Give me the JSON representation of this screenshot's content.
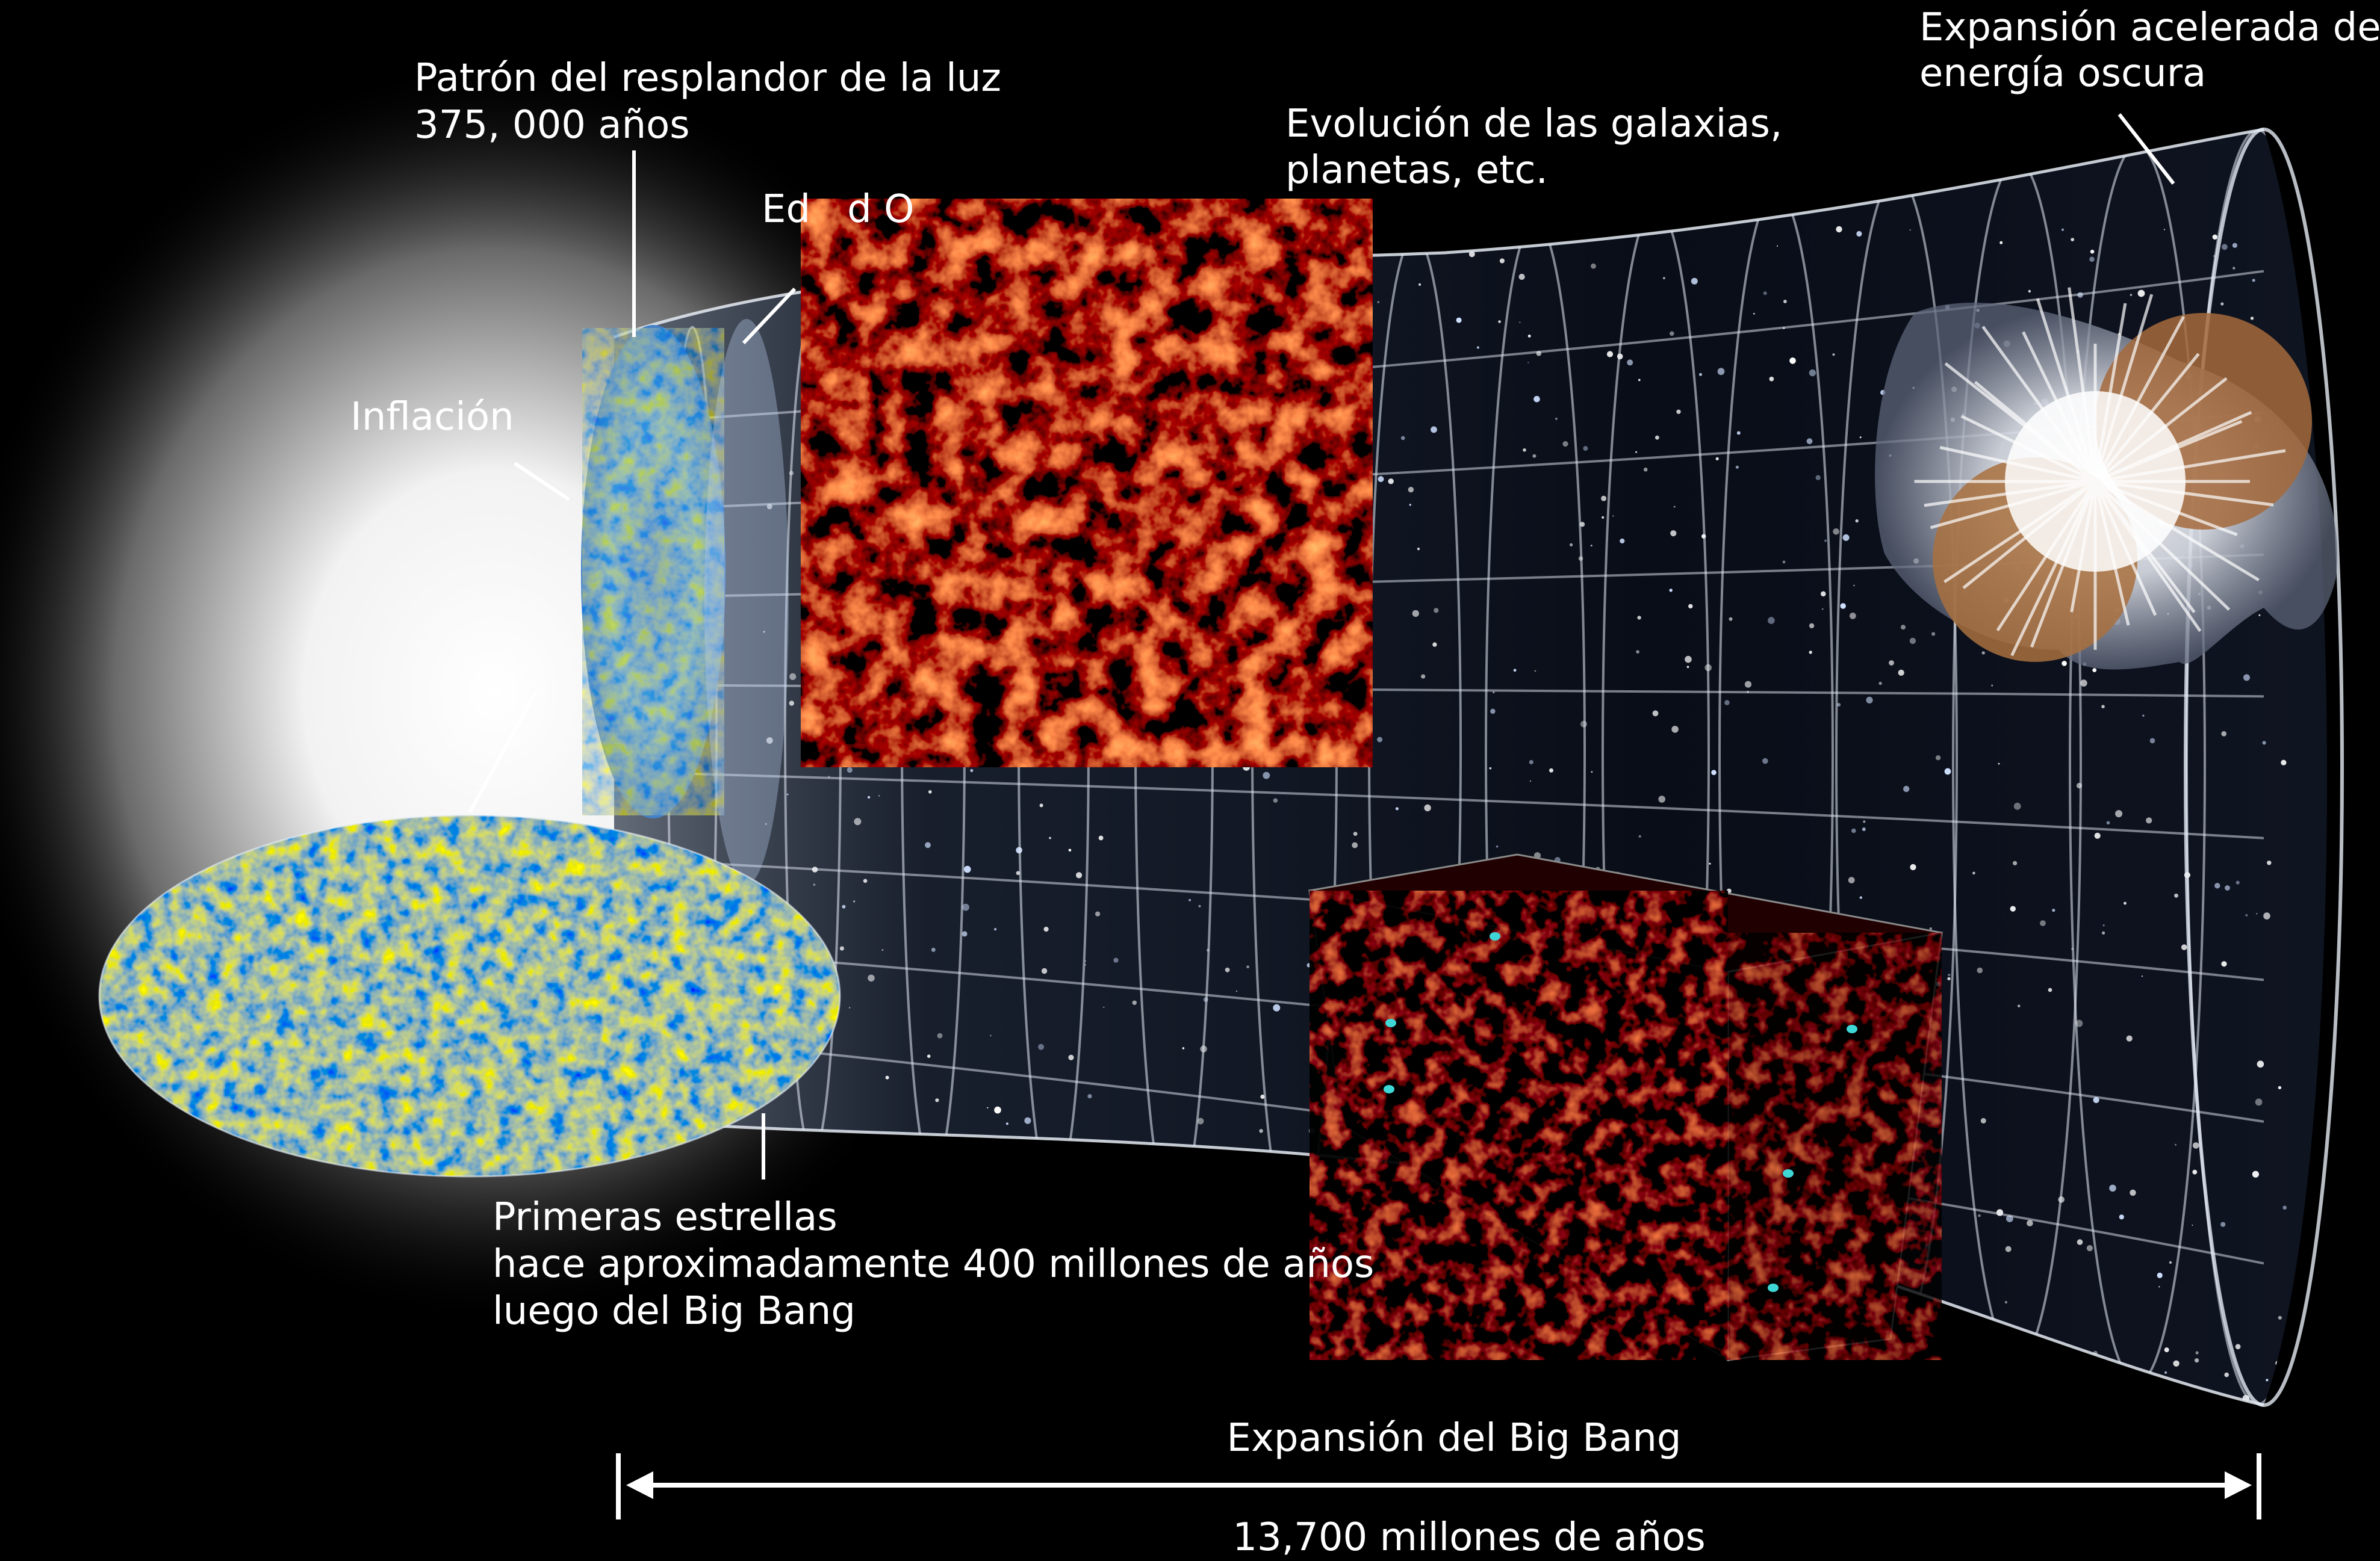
{
  "labels": {
    "cmb_title": "Patrón del resplandor de la luz",
    "cmb_age": "375, 000 años",
    "dark_age_partial": "Ed   d O",
    "inflation": "Inflación",
    "galaxies_line1": "Evolución de las galaxias,",
    "galaxies_line2": "planetas, etc.",
    "dark_energy_line1": "Expansión acelerada de",
    "dark_energy_line2": "energía oscura",
    "stars_line1": "Primeras estrellas",
    "stars_line2": "hace aproximadamente 400 millones de años",
    "stars_line3": "luego del Big Bang",
    "expansion": "Expansión del Big Bang",
    "duration": "13,700 millones de años"
  },
  "colors": {
    "background": "#000000",
    "text": "#ffffff",
    "grid": "#e6ecf5",
    "web_filament": "#ff6a1a",
    "web_dark": "#3a0600",
    "cmb_blue": "#2a6cc8",
    "cmb_orange": "#f2a23a",
    "glow": "#ffffff"
  },
  "icons": [
    "cosmic-web-image",
    "cmb-sky-map",
    "supernova-image",
    "simulation-cube",
    "star-field"
  ]
}
